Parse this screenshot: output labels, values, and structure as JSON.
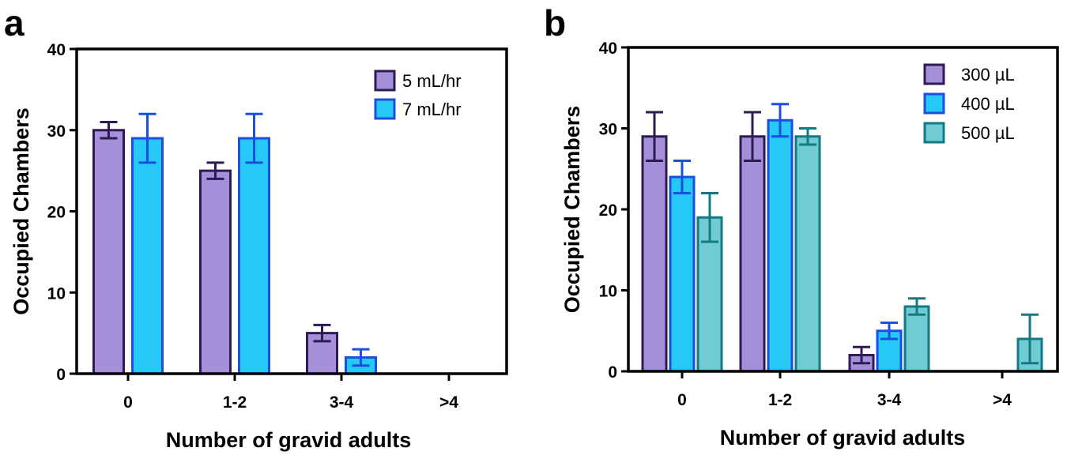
{
  "colors": {
    "fill_purple": "#a48fd8",
    "stroke_purple": "#2e1a55",
    "fill_blue": "#26c9f5",
    "stroke_blue": "#1b4fe0",
    "fill_teal": "#70ccd2",
    "stroke_teal": "#137a84"
  },
  "chart_data": [
    {
      "panel_label": "a",
      "type": "bar",
      "xlabel": "Number of gravid adults",
      "ylabel": "Occupied Chambers",
      "ylim": [
        0,
        40
      ],
      "yticks": [
        "0",
        "10",
        "20",
        "30",
        "40"
      ],
      "categories": [
        "0",
        "1-2",
        "3-4",
        ">4"
      ],
      "legend_position": "top-right",
      "grid": false,
      "series": [
        {
          "name": "5 mL/hr",
          "fill": "#a48fd8",
          "stroke": "#2e1a55",
          "values": [
            30,
            25,
            5,
            null
          ],
          "error": [
            1,
            1,
            1,
            null
          ]
        },
        {
          "name": "7 mL/hr",
          "fill": "#26c9f5",
          "stroke": "#1b4fe0",
          "values": [
            29,
            29,
            2,
            null
          ],
          "error": [
            3,
            3,
            1,
            null
          ]
        }
      ]
    },
    {
      "panel_label": "b",
      "type": "bar",
      "xlabel": "Number of gravid adults",
      "ylabel": "Occupied Chambers",
      "ylim": [
        0,
        40
      ],
      "yticks": [
        "0",
        "10",
        "20",
        "30",
        "40"
      ],
      "categories": [
        "0",
        "1-2",
        "3-4",
        ">4"
      ],
      "legend_position": "top-right",
      "grid": false,
      "series": [
        {
          "name": "300 µL",
          "fill": "#a48fd8",
          "stroke": "#2e1a55",
          "values": [
            29,
            29,
            2,
            null
          ],
          "error": [
            3,
            3,
            1,
            null
          ]
        },
        {
          "name": "400 µL",
          "fill": "#26c9f5",
          "stroke": "#1b4fe0",
          "values": [
            24,
            31,
            5,
            null
          ],
          "error": [
            2,
            2,
            1,
            null
          ]
        },
        {
          "name": "500 µL",
          "fill": "#70ccd2",
          "stroke": "#137a84",
          "values": [
            19,
            29,
            8,
            4
          ],
          "error": [
            3,
            1,
            1,
            3
          ]
        }
      ]
    }
  ]
}
